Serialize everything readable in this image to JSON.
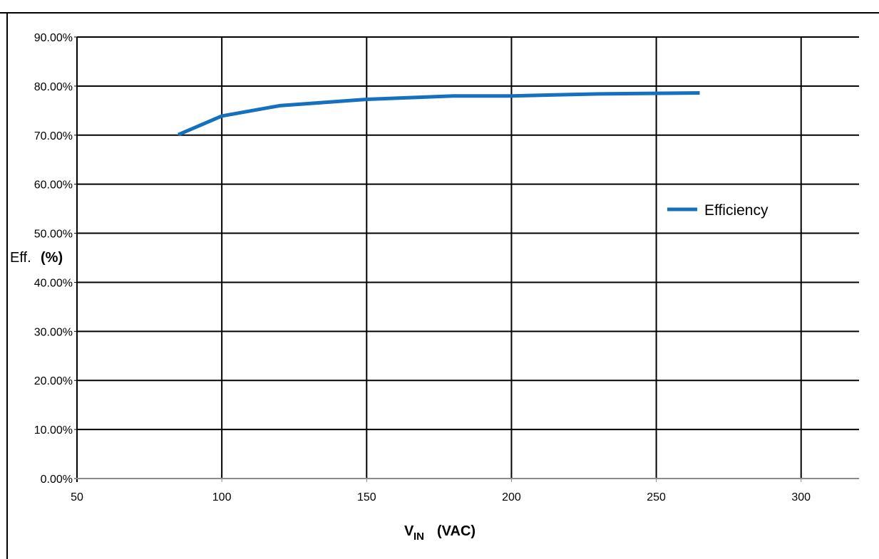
{
  "chart_data": {
    "type": "line",
    "title": "",
    "xlabel_main": "V",
    "xlabel_sub": "IN",
    "xlabel_unit": "(VAC)",
    "ylabel_main": "Eff.",
    "ylabel_unit": "(%)",
    "xlim": [
      50,
      320
    ],
    "ylim": [
      0,
      90
    ],
    "x_ticks": [
      "50",
      "100",
      "150",
      "200",
      "250",
      "300"
    ],
    "y_ticks": [
      "0.00%",
      "10.00%",
      "20.00%",
      "30.00%",
      "40.00%",
      "50.00%",
      "60.00%",
      "70.00%",
      "80.00%",
      "90.00%"
    ],
    "grid": true,
    "legend_position": "right",
    "series": [
      {
        "name": "Efficiency",
        "color": "#1570be",
        "x": [
          85,
          100,
          120,
          150,
          180,
          200,
          230,
          265
        ],
        "y": [
          70.1,
          73.9,
          76.0,
          77.3,
          78.0,
          78.0,
          78.4,
          78.6
        ]
      }
    ]
  }
}
